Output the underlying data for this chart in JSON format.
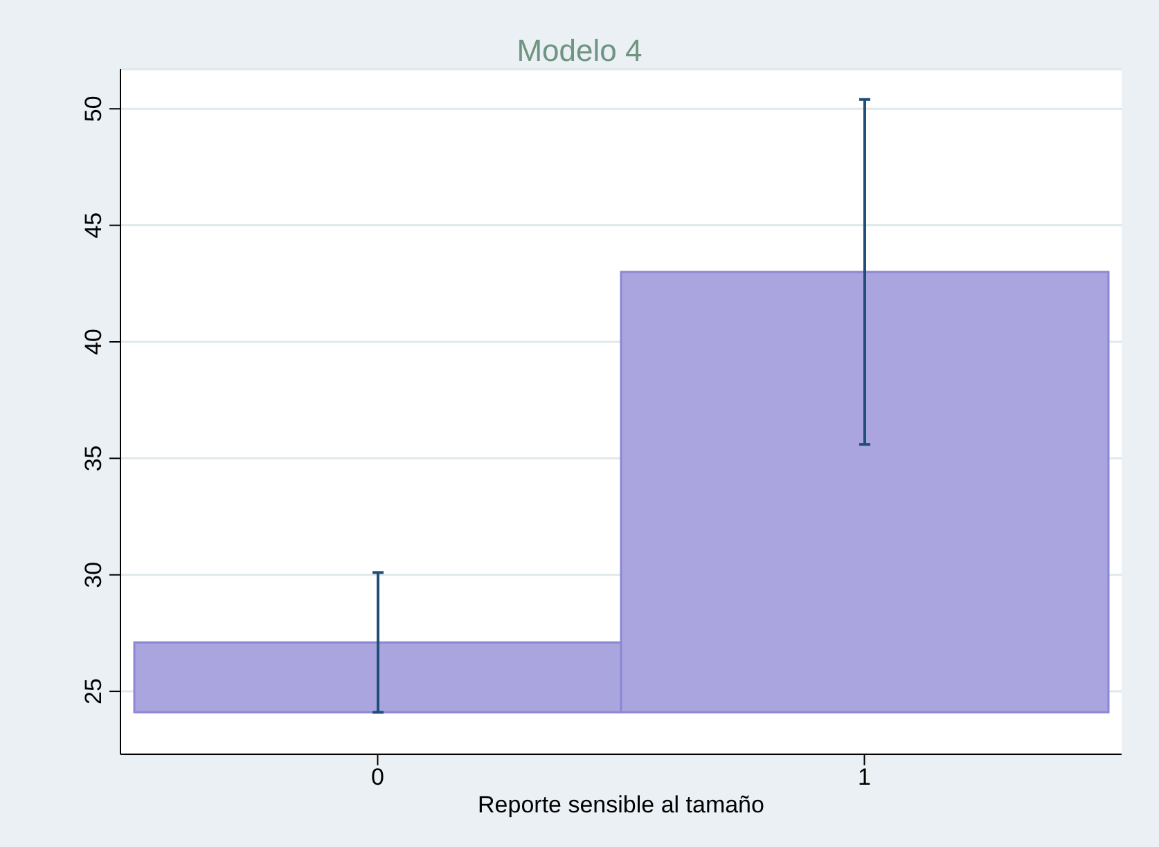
{
  "chart_data": {
    "type": "bar",
    "title": "Modelo 4",
    "xlabel": "Reporte sensible al tamaño",
    "categories": [
      "0",
      "1"
    ],
    "base": [
      24.1,
      24.1
    ],
    "values": [
      3.0,
      18.9
    ],
    "errors": [
      3.0,
      7.4
    ],
    "color": "#aaa5de",
    "ylim": [
      22.3,
      51.7
    ],
    "yticks": [
      25,
      30,
      35,
      40,
      45,
      50
    ],
    "grid": "y"
  }
}
